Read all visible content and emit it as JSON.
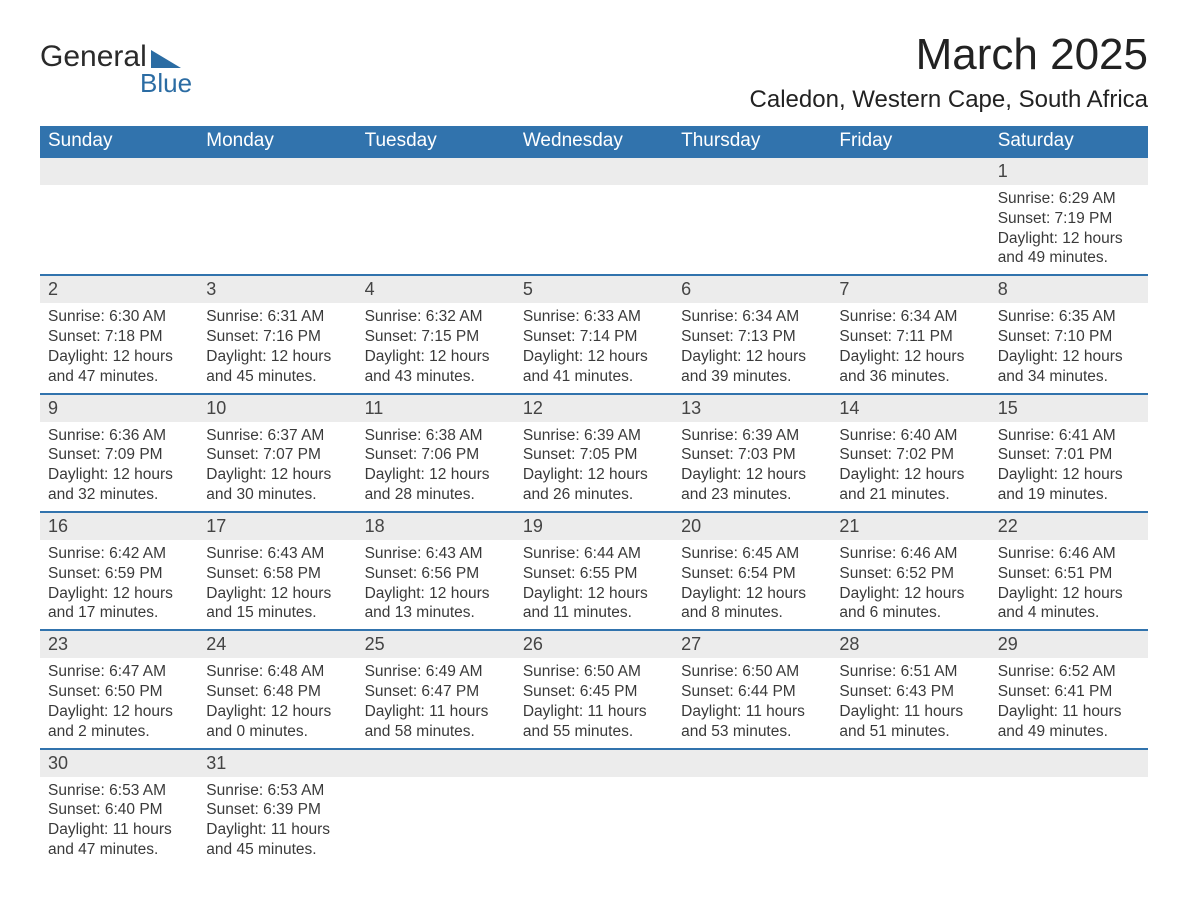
{
  "logo": {
    "text_top": "General",
    "text_bottom": "Blue",
    "flag_color": "#2b6ca3"
  },
  "title": "March 2025",
  "location": "Caledon, Western Cape, South Africa",
  "colors": {
    "header_bg": "#3173ad",
    "header_text": "#ffffff",
    "daynum_bg": "#ececec",
    "row_divider": "#3173ad",
    "body_text": "#3a3a3a"
  },
  "fonts": {
    "title_pt": 44,
    "location_pt": 24,
    "th_pt": 19,
    "daynum_pt": 18,
    "cell_pt": 15.5
  },
  "day_headers": [
    "Sunday",
    "Monday",
    "Tuesday",
    "Wednesday",
    "Thursday",
    "Friday",
    "Saturday"
  ],
  "weeks": [
    [
      null,
      null,
      null,
      null,
      null,
      null,
      {
        "n": "1",
        "sr": "Sunrise: 6:29 AM",
        "ss": "Sunset: 7:19 PM",
        "dl": "Daylight: 12 hours and 49 minutes."
      }
    ],
    [
      {
        "n": "2",
        "sr": "Sunrise: 6:30 AM",
        "ss": "Sunset: 7:18 PM",
        "dl": "Daylight: 12 hours and 47 minutes."
      },
      {
        "n": "3",
        "sr": "Sunrise: 6:31 AM",
        "ss": "Sunset: 7:16 PM",
        "dl": "Daylight: 12 hours and 45 minutes."
      },
      {
        "n": "4",
        "sr": "Sunrise: 6:32 AM",
        "ss": "Sunset: 7:15 PM",
        "dl": "Daylight: 12 hours and 43 minutes."
      },
      {
        "n": "5",
        "sr": "Sunrise: 6:33 AM",
        "ss": "Sunset: 7:14 PM",
        "dl": "Daylight: 12 hours and 41 minutes."
      },
      {
        "n": "6",
        "sr": "Sunrise: 6:34 AM",
        "ss": "Sunset: 7:13 PM",
        "dl": "Daylight: 12 hours and 39 minutes."
      },
      {
        "n": "7",
        "sr": "Sunrise: 6:34 AM",
        "ss": "Sunset: 7:11 PM",
        "dl": "Daylight: 12 hours and 36 minutes."
      },
      {
        "n": "8",
        "sr": "Sunrise: 6:35 AM",
        "ss": "Sunset: 7:10 PM",
        "dl": "Daylight: 12 hours and 34 minutes."
      }
    ],
    [
      {
        "n": "9",
        "sr": "Sunrise: 6:36 AM",
        "ss": "Sunset: 7:09 PM",
        "dl": "Daylight: 12 hours and 32 minutes."
      },
      {
        "n": "10",
        "sr": "Sunrise: 6:37 AM",
        "ss": "Sunset: 7:07 PM",
        "dl": "Daylight: 12 hours and 30 minutes."
      },
      {
        "n": "11",
        "sr": "Sunrise: 6:38 AM",
        "ss": "Sunset: 7:06 PM",
        "dl": "Daylight: 12 hours and 28 minutes."
      },
      {
        "n": "12",
        "sr": "Sunrise: 6:39 AM",
        "ss": "Sunset: 7:05 PM",
        "dl": "Daylight: 12 hours and 26 minutes."
      },
      {
        "n": "13",
        "sr": "Sunrise: 6:39 AM",
        "ss": "Sunset: 7:03 PM",
        "dl": "Daylight: 12 hours and 23 minutes."
      },
      {
        "n": "14",
        "sr": "Sunrise: 6:40 AM",
        "ss": "Sunset: 7:02 PM",
        "dl": "Daylight: 12 hours and 21 minutes."
      },
      {
        "n": "15",
        "sr": "Sunrise: 6:41 AM",
        "ss": "Sunset: 7:01 PM",
        "dl": "Daylight: 12 hours and 19 minutes."
      }
    ],
    [
      {
        "n": "16",
        "sr": "Sunrise: 6:42 AM",
        "ss": "Sunset: 6:59 PM",
        "dl": "Daylight: 12 hours and 17 minutes."
      },
      {
        "n": "17",
        "sr": "Sunrise: 6:43 AM",
        "ss": "Sunset: 6:58 PM",
        "dl": "Daylight: 12 hours and 15 minutes."
      },
      {
        "n": "18",
        "sr": "Sunrise: 6:43 AM",
        "ss": "Sunset: 6:56 PM",
        "dl": "Daylight: 12 hours and 13 minutes."
      },
      {
        "n": "19",
        "sr": "Sunrise: 6:44 AM",
        "ss": "Sunset: 6:55 PM",
        "dl": "Daylight: 12 hours and 11 minutes."
      },
      {
        "n": "20",
        "sr": "Sunrise: 6:45 AM",
        "ss": "Sunset: 6:54 PM",
        "dl": "Daylight: 12 hours and 8 minutes."
      },
      {
        "n": "21",
        "sr": "Sunrise: 6:46 AM",
        "ss": "Sunset: 6:52 PM",
        "dl": "Daylight: 12 hours and 6 minutes."
      },
      {
        "n": "22",
        "sr": "Sunrise: 6:46 AM",
        "ss": "Sunset: 6:51 PM",
        "dl": "Daylight: 12 hours and 4 minutes."
      }
    ],
    [
      {
        "n": "23",
        "sr": "Sunrise: 6:47 AM",
        "ss": "Sunset: 6:50 PM",
        "dl": "Daylight: 12 hours and 2 minutes."
      },
      {
        "n": "24",
        "sr": "Sunrise: 6:48 AM",
        "ss": "Sunset: 6:48 PM",
        "dl": "Daylight: 12 hours and 0 minutes."
      },
      {
        "n": "25",
        "sr": "Sunrise: 6:49 AM",
        "ss": "Sunset: 6:47 PM",
        "dl": "Daylight: 11 hours and 58 minutes."
      },
      {
        "n": "26",
        "sr": "Sunrise: 6:50 AM",
        "ss": "Sunset: 6:45 PM",
        "dl": "Daylight: 11 hours and 55 minutes."
      },
      {
        "n": "27",
        "sr": "Sunrise: 6:50 AM",
        "ss": "Sunset: 6:44 PM",
        "dl": "Daylight: 11 hours and 53 minutes."
      },
      {
        "n": "28",
        "sr": "Sunrise: 6:51 AM",
        "ss": "Sunset: 6:43 PM",
        "dl": "Daylight: 11 hours and 51 minutes."
      },
      {
        "n": "29",
        "sr": "Sunrise: 6:52 AM",
        "ss": "Sunset: 6:41 PM",
        "dl": "Daylight: 11 hours and 49 minutes."
      }
    ],
    [
      {
        "n": "30",
        "sr": "Sunrise: 6:53 AM",
        "ss": "Sunset: 6:40 PM",
        "dl": "Daylight: 11 hours and 47 minutes."
      },
      {
        "n": "31",
        "sr": "Sunrise: 6:53 AM",
        "ss": "Sunset: 6:39 PM",
        "dl": "Daylight: 11 hours and 45 minutes."
      },
      null,
      null,
      null,
      null,
      null
    ]
  ]
}
